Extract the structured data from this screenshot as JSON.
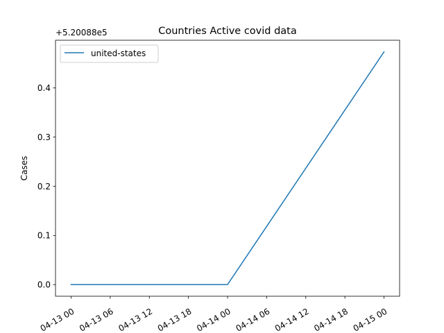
{
  "chart_data": {
    "type": "line",
    "title": "Countries Active covid data",
    "xlabel": "",
    "ylabel": "Cases",
    "offset_label": "+5.20088e5",
    "x_tick_labels": [
      "04-13 00",
      "04-13 06",
      "04-13 12",
      "04-13 18",
      "04-14 00",
      "04-14 06",
      "04-14 12",
      "04-14 18",
      "04-15 00"
    ],
    "y_tick_labels": [
      "0.0",
      "0.1",
      "0.2",
      "0.3",
      "0.4"
    ],
    "y_ticks": [
      0.0,
      0.1,
      0.2,
      0.3,
      0.4
    ],
    "ylim": [
      -0.02367,
      0.497
    ],
    "legend": "upper left",
    "grid": false,
    "series": [
      {
        "name": "united-states",
        "color": "#1f77b4",
        "x": [
          "04-13 00",
          "04-14 00",
          "04-15 00"
        ],
        "y": [
          520088.0,
          520088.0,
          520088.4733
        ]
      }
    ]
  }
}
